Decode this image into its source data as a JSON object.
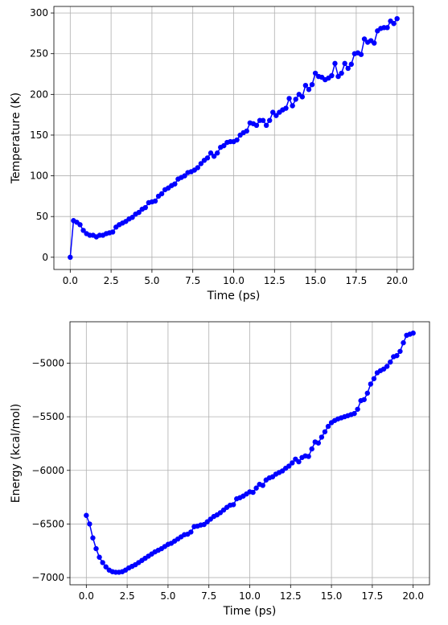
{
  "chart_data": [
    {
      "type": "line",
      "xlabel": "Time (ps)",
      "ylabel": "Temperature (K)",
      "xlim": [
        -1.0,
        21.0
      ],
      "ylim": [
        -15,
        308
      ],
      "xticks": [
        0.0,
        2.5,
        5.0,
        7.5,
        10.0,
        12.5,
        15.0,
        17.5,
        20.0
      ],
      "xtick_labels": [
        "0.0",
        "2.5",
        "5.0",
        "7.5",
        "10.0",
        "12.5",
        "15.0",
        "17.5",
        "20.0"
      ],
      "yticks": [
        0,
        50,
        100,
        150,
        200,
        250,
        300
      ],
      "ytick_labels": [
        "0",
        "50",
        "100",
        "150",
        "200",
        "250",
        "300"
      ],
      "grid": true,
      "color": "#0000ff",
      "x": [
        0.0,
        0.2,
        0.4,
        0.6,
        0.8,
        1.0,
        1.2,
        1.4,
        1.6,
        1.8,
        2.0,
        2.2,
        2.4,
        2.6,
        2.8,
        3.0,
        3.2,
        3.4,
        3.6,
        3.8,
        4.0,
        4.2,
        4.4,
        4.6,
        4.8,
        5.0,
        5.2,
        5.4,
        5.6,
        5.8,
        6.0,
        6.2,
        6.4,
        6.6,
        6.8,
        7.0,
        7.2,
        7.4,
        7.6,
        7.8,
        8.0,
        8.2,
        8.4,
        8.6,
        8.8,
        9.0,
        9.2,
        9.4,
        9.6,
        9.8,
        10.0,
        10.2,
        10.4,
        10.6,
        10.8,
        11.0,
        11.2,
        11.4,
        11.6,
        11.8,
        12.0,
        12.2,
        12.4,
        12.6,
        12.8,
        13.0,
        13.2,
        13.4,
        13.6,
        13.8,
        14.0,
        14.2,
        14.4,
        14.6,
        14.8,
        15.0,
        15.2,
        15.4,
        15.6,
        15.8,
        16.0,
        16.2,
        16.4,
        16.6,
        16.8,
        17.0,
        17.2,
        17.4,
        17.6,
        17.8,
        18.0,
        18.2,
        18.4,
        18.6,
        18.8,
        19.0,
        19.2,
        19.4,
        19.6,
        19.8,
        20.0
      ],
      "y": [
        0,
        45,
        43,
        40,
        33,
        29,
        27,
        27,
        25,
        27,
        27,
        29,
        30,
        31,
        37,
        40,
        42,
        44,
        47,
        49,
        53,
        55,
        59,
        61,
        67,
        68,
        69,
        75,
        78,
        83,
        85,
        88,
        90,
        96,
        98,
        100,
        104,
        105,
        107,
        110,
        115,
        119,
        122,
        128,
        124,
        128,
        135,
        137,
        141,
        142,
        142,
        144,
        150,
        153,
        155,
        165,
        164,
        162,
        168,
        168,
        162,
        168,
        178,
        174,
        178,
        181,
        183,
        195,
        186,
        194,
        200,
        197,
        211,
        206,
        212,
        226,
        222,
        221,
        218,
        220,
        223,
        238,
        222,
        226,
        238,
        232,
        237,
        250,
        251,
        249,
        268,
        264,
        266,
        263,
        278,
        281,
        282,
        282,
        290,
        287,
        293
      ]
    },
    {
      "type": "line",
      "xlabel": "Time (ps)",
      "ylabel": "Energy (kcal/mol)",
      "xlim": [
        -1.0,
        21.0
      ],
      "ylim": [
        -7067,
        -4614
      ],
      "xticks": [
        0.0,
        2.5,
        5.0,
        7.5,
        10.0,
        12.5,
        15.0,
        17.5,
        20.0
      ],
      "xtick_labels": [
        "0.0",
        "2.5",
        "5.0",
        "7.5",
        "10.0",
        "12.5",
        "15.0",
        "17.5",
        "20.0"
      ],
      "yticks": [
        -7000,
        -6500,
        -6000,
        -5500,
        -5000
      ],
      "ytick_labels": [
        "−7000",
        "−6500",
        "−6000",
        "−5500",
        "−5000"
      ],
      "grid": true,
      "color": "#0000ff",
      "x": [
        0.0,
        0.2,
        0.4,
        0.6,
        0.8,
        1.0,
        1.2,
        1.4,
        1.6,
        1.8,
        2.0,
        2.2,
        2.4,
        2.6,
        2.8,
        3.0,
        3.2,
        3.4,
        3.6,
        3.8,
        4.0,
        4.2,
        4.4,
        4.6,
        4.8,
        5.0,
        5.2,
        5.4,
        5.6,
        5.8,
        6.0,
        6.2,
        6.4,
        6.6,
        6.8,
        7.0,
        7.2,
        7.4,
        7.6,
        7.8,
        8.0,
        8.2,
        8.4,
        8.6,
        8.8,
        9.0,
        9.2,
        9.4,
        9.6,
        9.8,
        10.0,
        10.2,
        10.4,
        10.6,
        10.8,
        11.0,
        11.2,
        11.4,
        11.6,
        11.8,
        12.0,
        12.2,
        12.4,
        12.6,
        12.8,
        13.0,
        13.2,
        13.4,
        13.6,
        13.8,
        14.0,
        14.2,
        14.4,
        14.6,
        14.8,
        15.0,
        15.2,
        15.4,
        15.6,
        15.8,
        16.0,
        16.2,
        16.4,
        16.6,
        16.8,
        17.0,
        17.2,
        17.4,
        17.6,
        17.8,
        18.0,
        18.2,
        18.4,
        18.6,
        18.8,
        19.0,
        19.2,
        19.4,
        19.6,
        19.8,
        20.0
      ],
      "y": [
        -6420,
        -6500,
        -6630,
        -6730,
        -6810,
        -6860,
        -6900,
        -6930,
        -6945,
        -6950,
        -6950,
        -6945,
        -6930,
        -6910,
        -6895,
        -6880,
        -6860,
        -6840,
        -6820,
        -6800,
        -6780,
        -6760,
        -6745,
        -6730,
        -6710,
        -6690,
        -6680,
        -6660,
        -6640,
        -6620,
        -6600,
        -6595,
        -6575,
        -6525,
        -6520,
        -6510,
        -6505,
        -6480,
        -6455,
        -6430,
        -6415,
        -6395,
        -6370,
        -6345,
        -6325,
        -6320,
        -6265,
        -6255,
        -6240,
        -6220,
        -6200,
        -6205,
        -6165,
        -6130,
        -6140,
        -6090,
        -6070,
        -6060,
        -6035,
        -6020,
        -6005,
        -5980,
        -5960,
        -5930,
        -5895,
        -5920,
        -5880,
        -5865,
        -5870,
        -5800,
        -5735,
        -5745,
        -5690,
        -5640,
        -5590,
        -5555,
        -5535,
        -5520,
        -5510,
        -5500,
        -5490,
        -5480,
        -5470,
        -5430,
        -5350,
        -5340,
        -5280,
        -5195,
        -5145,
        -5090,
        -5070,
        -5055,
        -5030,
        -4990,
        -4940,
        -4930,
        -4890,
        -4810,
        -4740,
        -4730,
        -4720
      ]
    }
  ]
}
